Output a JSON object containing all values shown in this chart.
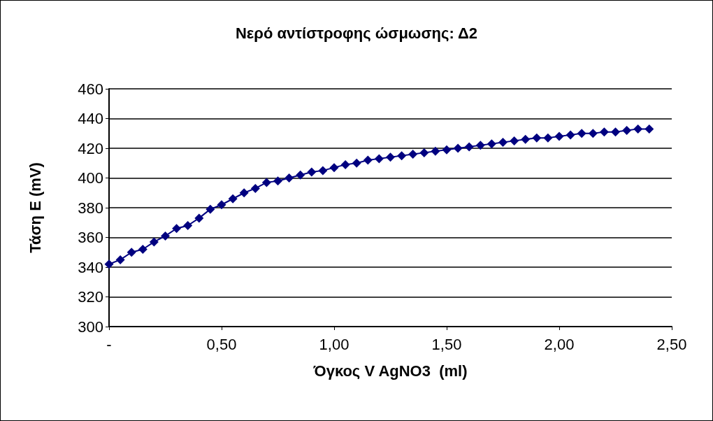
{
  "chart_data": {
    "type": "line",
    "title": "Νερό αντίστροφης ώσμωσης: Δ2",
    "xlabel": "Όγκος V AgNO3  (ml)",
    "ylabel": "Τάση E (mV)",
    "x": [
      0,
      0.05,
      0.1,
      0.15,
      0.2,
      0.25,
      0.3,
      0.35,
      0.4,
      0.45,
      0.5,
      0.55,
      0.6,
      0.65,
      0.7,
      0.75,
      0.8,
      0.85,
      0.9,
      0.95,
      1.0,
      1.05,
      1.1,
      1.15,
      1.2,
      1.25,
      1.3,
      1.35,
      1.4,
      1.45,
      1.5,
      1.55,
      1.6,
      1.65,
      1.7,
      1.75,
      1.8,
      1.85,
      1.9,
      1.95,
      2.0,
      2.05,
      2.1,
      2.15,
      2.2,
      2.25,
      2.3,
      2.35,
      2.4
    ],
    "series": [
      {
        "color": "#000080",
        "values": [
          342,
          345,
          350,
          352,
          357,
          361,
          366,
          368,
          373,
          379,
          382,
          386,
          390,
          393,
          397,
          398,
          400,
          402,
          404,
          405,
          407,
          409,
          410,
          412,
          413,
          414,
          415,
          416,
          417,
          418,
          419,
          420,
          421,
          422,
          423,
          424,
          425,
          426,
          427,
          427,
          428,
          429,
          430,
          430,
          431,
          431,
          432,
          433,
          433
        ]
      }
    ],
    "xlim": [
      0,
      2.5
    ],
    "xticks": [
      {
        "value": 0,
        "label": "-"
      },
      {
        "value": 0.5,
        "label": "0,50"
      },
      {
        "value": 1,
        "label": "1,00"
      },
      {
        "value": 1.5,
        "label": "1,50"
      },
      {
        "value": 2,
        "label": "2,00"
      },
      {
        "value": 2.5,
        "label": "2,50"
      }
    ],
    "ylim": [
      300,
      460
    ],
    "yticks": [
      300,
      320,
      340,
      360,
      380,
      400,
      420,
      440,
      460
    ],
    "grid": "y",
    "marker": "diamond",
    "line_style": "solid"
  }
}
